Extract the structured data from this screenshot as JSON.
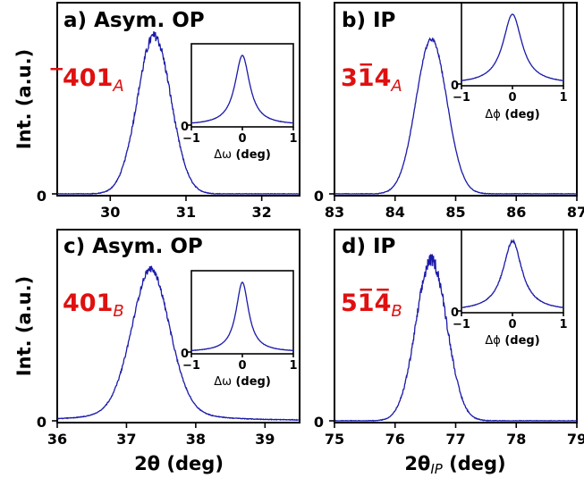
{
  "chart_data": [
    {
      "id": "a",
      "type": "line",
      "panel_label": "a) Asym. OP",
      "reflection": {
        "main": "̅401",
        "sub": "A"
      },
      "xlim": [
        29.3,
        32.5
      ],
      "xticks": [
        "30",
        "31",
        "32"
      ],
      "ylabel": "Int. (a.u.)",
      "y_zero_tick": "0",
      "peak": {
        "center": 30.58,
        "fwhm": 0.52,
        "shape": "gaussian",
        "noise": 0.03
      },
      "inset": {
        "xlim": [
          -1,
          1
        ],
        "xticks": [
          "−1",
          "0",
          "1"
        ],
        "y_zero_tick": "0",
        "xlabel_var": "Δω",
        "xlabel_unit": " (deg)",
        "peak": {
          "center": 0,
          "fwhm": 0.35,
          "shape": "lorentzian"
        }
      }
    },
    {
      "id": "b",
      "type": "line",
      "panel_label": "b) IP",
      "reflection": {
        "main": "31̅4",
        "sub": "A"
      },
      "xlim": [
        83,
        87
      ],
      "xticks": [
        "83",
        "84",
        "85",
        "86",
        "87"
      ],
      "y_zero_tick": "0",
      "peak": {
        "center": 84.6,
        "fwhm": 0.6,
        "shape": "gaussian",
        "noise": 0.01
      },
      "inset": {
        "xlim": [
          -1,
          1
        ],
        "xticks": [
          "−1",
          "0",
          "1"
        ],
        "y_zero_tick": "0",
        "xlabel_var": "Δϕ",
        "xlabel_unit": " (deg)",
        "peak": {
          "center": 0,
          "fwhm": 0.45,
          "shape": "lorentzian"
        }
      }
    },
    {
      "id": "c",
      "type": "line",
      "panel_label": "c) Asym. OP",
      "reflection": {
        "main": "401",
        "sub": "B"
      },
      "xlim": [
        36,
        39.5
      ],
      "xticks": [
        "36",
        "37",
        "38",
        "39"
      ],
      "ylabel": "Int. (a.u.)",
      "y_zero_tick": "0",
      "xlabel_var": "2θ",
      "xlabel_unit": " (deg)",
      "peak": {
        "center": 37.35,
        "fwhm": 0.66,
        "shape": "pseudo-voigt",
        "noise": 0.02
      },
      "inset": {
        "xlim": [
          -1,
          1
        ],
        "xticks": [
          "−1",
          "0",
          "1"
        ],
        "y_zero_tick": "0",
        "xlabel_var": "Δω",
        "xlabel_unit": " (deg)",
        "peak": {
          "center": 0,
          "fwhm": 0.3,
          "shape": "lorentzian"
        }
      }
    },
    {
      "id": "d",
      "type": "line",
      "panel_label": "d) IP",
      "reflection": {
        "main": "51̅4̅",
        "sub": "B"
      },
      "xlim": [
        75,
        79
      ],
      "xticks": [
        "75",
        "76",
        "77",
        "78",
        "79"
      ],
      "y_zero_tick": "0",
      "xlabel_var": "2θ",
      "xlabel_sub": "IP",
      "xlabel_unit": " (deg)",
      "peak": {
        "center": 76.6,
        "fwhm": 0.6,
        "shape": "gaussian",
        "noise": 0.04
      },
      "inset": {
        "xlim": [
          -1,
          1
        ],
        "xticks": [
          "−1",
          "0",
          "1"
        ],
        "y_zero_tick": "0",
        "xlabel_var": "Δϕ",
        "xlabel_unit": " (deg)",
        "peak": {
          "center": 0,
          "fwhm": 0.45,
          "shape": "lorentzian",
          "noise": 0.02
        }
      }
    }
  ],
  "colors": {
    "line": "#1a1aa8",
    "reflection": "#e01010",
    "axes": "#000000"
  }
}
